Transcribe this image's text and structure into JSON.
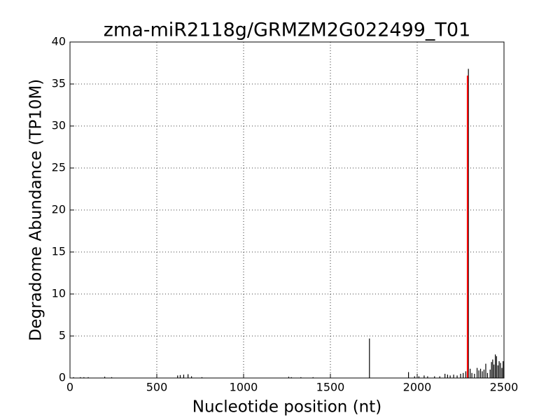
{
  "chart_data": {
    "type": "spike",
    "title": "zma-miR2118g/GRMZM2G022499_T01",
    "x_label": "Nucleotide position (nt)",
    "y_label": "Degradome Abundance (TP10M)",
    "series": [
      {
        "color": "#000000",
        "x": [
          20,
          60,
          80,
          105,
          200,
          240,
          620,
          635,
          655,
          680,
          700,
          760,
          1260,
          1275,
          1330,
          1400,
          1725,
          1950,
          1985,
          2010,
          2040,
          2060,
          2100,
          2130,
          2160,
          2175,
          2190,
          2210,
          2230,
          2250,
          2265,
          2280,
          2295,
          2305,
          2315,
          2330,
          2345,
          2355,
          2365,
          2375,
          2385,
          2395,
          2405,
          2420,
          2428,
          2435,
          2442,
          2450,
          2457,
          2465,
          2472,
          2480,
          2488,
          2495
        ],
        "values": [
          0.1,
          0.1,
          0.1,
          0.1,
          0.15,
          0.1,
          0.3,
          0.35,
          0.4,
          0.45,
          0.2,
          0.1,
          0.15,
          0.1,
          0.1,
          0.1,
          4.7,
          0.7,
          0.2,
          0.2,
          0.3,
          0.2,
          0.2,
          0.2,
          0.5,
          0.4,
          0.3,
          0.4,
          0.3,
          0.5,
          0.6,
          0.8,
          36.8,
          1.1,
          0.6,
          0.5,
          1.2,
          0.9,
          1.1,
          0.8,
          1.0,
          1.7,
          0.6,
          1.0,
          1.9,
          2.2,
          1.6,
          2.8,
          2.6,
          1.5,
          2.0,
          1.8,
          1.2,
          2.0
        ]
      },
      {
        "color": "#ff0000",
        "x": [
          2290
        ],
        "values": [
          36
        ]
      }
    ],
    "xlim": [
      0,
      2500
    ],
    "xticks": [
      0,
      500,
      1000,
      1500,
      2000,
      2500
    ],
    "ylim": [
      0,
      40
    ],
    "yticks": [
      0,
      5,
      10,
      15,
      20,
      25,
      30,
      35,
      40
    ],
    "grid": true
  }
}
